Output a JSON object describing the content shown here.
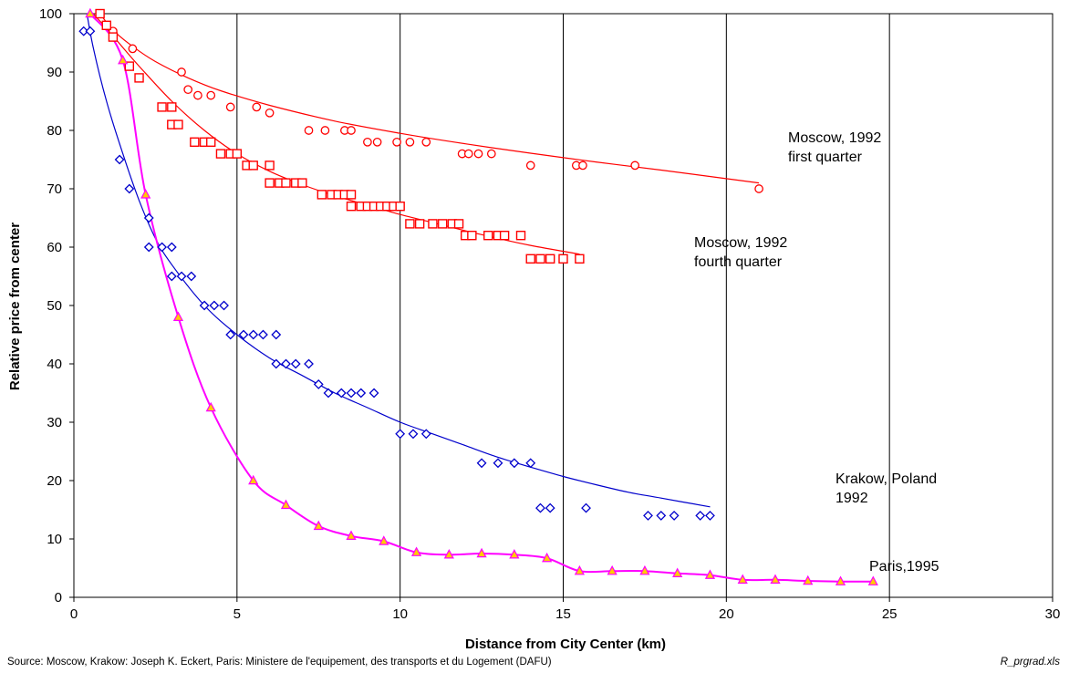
{
  "chart_data": {
    "type": "scatter",
    "xlabel": "Distance from City Center (km)",
    "ylabel": "Relative price from center",
    "xlim": [
      0,
      30
    ],
    "ylim": [
      0,
      100
    ],
    "x_ticks": [
      0,
      5,
      10,
      15,
      20,
      25,
      30
    ],
    "y_ticks": [
      0,
      10,
      20,
      30,
      40,
      50,
      60,
      70,
      80,
      90,
      100
    ],
    "grid": "vertical",
    "legend": "none",
    "series": [
      {
        "name": "Moscow, 1992 first quarter",
        "label_lines": [
          "Moscow, 1992",
          "first quarter"
        ],
        "color": "#ff0000",
        "marker": "circle",
        "points": [
          [
            0.8,
            100
          ],
          [
            1.0,
            98
          ],
          [
            1.2,
            97
          ],
          [
            1.8,
            94
          ],
          [
            3.3,
            90
          ],
          [
            3.5,
            87
          ],
          [
            3.8,
            86
          ],
          [
            4.2,
            86
          ],
          [
            4.8,
            84
          ],
          [
            5.6,
            84
          ],
          [
            6.0,
            83
          ],
          [
            7.2,
            80
          ],
          [
            7.7,
            80
          ],
          [
            8.3,
            80
          ],
          [
            8.5,
            80
          ],
          [
            9.0,
            78
          ],
          [
            9.3,
            78
          ],
          [
            9.9,
            78
          ],
          [
            10.3,
            78
          ],
          [
            10.8,
            78
          ],
          [
            11.9,
            76
          ],
          [
            12.1,
            76
          ],
          [
            12.4,
            76
          ],
          [
            12.8,
            76
          ],
          [
            14.0,
            74
          ],
          [
            15.4,
            74
          ],
          [
            15.6,
            74
          ],
          [
            17.2,
            74
          ],
          [
            21.0,
            70
          ]
        ],
        "trend": [
          [
            0.8,
            100
          ],
          [
            1.2,
            97.2
          ],
          [
            1.8,
            94.4
          ],
          [
            2.5,
            91.8
          ],
          [
            3.5,
            89.0
          ],
          [
            4.5,
            86.8
          ],
          [
            6,
            84.3
          ],
          [
            8,
            81.6
          ],
          [
            10,
            79.5
          ],
          [
            12,
            77.7
          ],
          [
            14,
            76.1
          ],
          [
            16,
            74.6
          ],
          [
            18,
            73.2
          ],
          [
            21,
            71.0
          ]
        ]
      },
      {
        "name": "Moscow, 1992 fourth quarter",
        "label_lines": [
          "Moscow, 1992",
          "fourth quarter"
        ],
        "color": "#ff0000",
        "marker": "square",
        "points": [
          [
            0.8,
            100
          ],
          [
            1.0,
            98
          ],
          [
            1.2,
            96
          ],
          [
            1.7,
            91
          ],
          [
            2.0,
            89
          ],
          [
            2.7,
            84
          ],
          [
            3.0,
            84
          ],
          [
            3.0,
            81
          ],
          [
            3.2,
            81
          ],
          [
            3.7,
            78
          ],
          [
            4.0,
            78
          ],
          [
            4.2,
            78
          ],
          [
            4.5,
            76
          ],
          [
            4.8,
            76
          ],
          [
            5.0,
            76
          ],
          [
            5.3,
            74
          ],
          [
            5.5,
            74
          ],
          [
            6.0,
            74
          ],
          [
            6.0,
            71
          ],
          [
            6.3,
            71
          ],
          [
            6.5,
            71
          ],
          [
            6.8,
            71
          ],
          [
            7.0,
            71
          ],
          [
            7.6,
            69
          ],
          [
            7.9,
            69
          ],
          [
            8.1,
            69
          ],
          [
            8.3,
            69
          ],
          [
            8.5,
            69
          ],
          [
            8.5,
            67
          ],
          [
            8.8,
            67
          ],
          [
            9.0,
            67
          ],
          [
            9.2,
            67
          ],
          [
            9.4,
            67
          ],
          [
            9.6,
            67
          ],
          [
            9.8,
            67
          ],
          [
            10.0,
            67
          ],
          [
            10.3,
            64
          ],
          [
            10.6,
            64
          ],
          [
            11.0,
            64
          ],
          [
            11.3,
            64
          ],
          [
            11.6,
            64
          ],
          [
            11.8,
            64
          ],
          [
            12.0,
            62
          ],
          [
            12.2,
            62
          ],
          [
            12.7,
            62
          ],
          [
            13.0,
            62
          ],
          [
            13.2,
            62
          ],
          [
            13.7,
            62
          ],
          [
            14.0,
            58
          ],
          [
            14.3,
            58
          ],
          [
            14.6,
            58
          ],
          [
            15.0,
            58
          ],
          [
            15.5,
            58
          ]
        ],
        "trend": [
          [
            0.5,
            100.5
          ],
          [
            1,
            97.5
          ],
          [
            1.5,
            94.2
          ],
          [
            2,
            91.0
          ],
          [
            3,
            85.0
          ],
          [
            4,
            80.0
          ],
          [
            5,
            76.0
          ],
          [
            6,
            73.0
          ],
          [
            7,
            70.7
          ],
          [
            8,
            68.8
          ],
          [
            9,
            67.2
          ],
          [
            10,
            65.6
          ],
          [
            11,
            64.2
          ],
          [
            12,
            62.8
          ],
          [
            13,
            61.5
          ],
          [
            14,
            60.3
          ],
          [
            15.5,
            58.8
          ]
        ]
      },
      {
        "name": "Krakow, Poland 1992",
        "label_lines": [
          "Krakow, Poland",
          "1992"
        ],
        "color": "#0000cc",
        "marker": "diamond",
        "points": [
          [
            0.3,
            97
          ],
          [
            0.5,
            97
          ],
          [
            1.4,
            75
          ],
          [
            1.7,
            70
          ],
          [
            2.3,
            65
          ],
          [
            2.3,
            60
          ],
          [
            2.7,
            60
          ],
          [
            3.0,
            60
          ],
          [
            3.0,
            55
          ],
          [
            3.3,
            55
          ],
          [
            3.6,
            55
          ],
          [
            4.0,
            50
          ],
          [
            4.3,
            50
          ],
          [
            4.6,
            50
          ],
          [
            4.8,
            45
          ],
          [
            5.2,
            45
          ],
          [
            5.5,
            45
          ],
          [
            5.8,
            45
          ],
          [
            6.2,
            45
          ],
          [
            6.2,
            40
          ],
          [
            6.5,
            40
          ],
          [
            6.8,
            40
          ],
          [
            7.2,
            40
          ],
          [
            7.5,
            36.5
          ],
          [
            7.8,
            35
          ],
          [
            8.2,
            35
          ],
          [
            8.5,
            35
          ],
          [
            8.8,
            35
          ],
          [
            9.2,
            35
          ],
          [
            10.0,
            28
          ],
          [
            10.4,
            28
          ],
          [
            10.8,
            28
          ],
          [
            12.5,
            23
          ],
          [
            13.0,
            23
          ],
          [
            13.5,
            23
          ],
          [
            14.0,
            23
          ],
          [
            14.3,
            15.3
          ],
          [
            14.6,
            15.3
          ],
          [
            15.7,
            15.3
          ],
          [
            17.6,
            14
          ],
          [
            18.0,
            14
          ],
          [
            18.4,
            14
          ],
          [
            19.2,
            14
          ],
          [
            19.5,
            14
          ]
        ],
        "trend": [
          [
            0.4,
            100
          ],
          [
            0.6,
            94
          ],
          [
            1,
            85
          ],
          [
            1.5,
            76
          ],
          [
            2,
            68
          ],
          [
            2.5,
            61.5
          ],
          [
            3,
            57
          ],
          [
            4,
            50
          ],
          [
            5,
            45
          ],
          [
            6,
            41
          ],
          [
            7,
            38
          ],
          [
            8,
            35
          ],
          [
            9,
            32.5
          ],
          [
            10,
            30
          ],
          [
            11,
            28
          ],
          [
            12,
            26
          ],
          [
            13,
            24
          ],
          [
            14,
            22.3
          ],
          [
            15,
            20.7
          ],
          [
            16,
            19.3
          ],
          [
            17,
            18
          ],
          [
            18,
            17
          ],
          [
            19.5,
            15.5
          ]
        ]
      },
      {
        "name": "Paris,1995",
        "label_lines": [
          "Paris,1995"
        ],
        "color": "#ff00ff",
        "marker": "triangle",
        "marker_fill": "#ffcc00",
        "points": [
          [
            0.5,
            100
          ],
          [
            1.5,
            92
          ],
          [
            2.2,
            69
          ],
          [
            3.2,
            48
          ],
          [
            4.2,
            32.5
          ],
          [
            5.5,
            20
          ],
          [
            6.5,
            15.8
          ],
          [
            7.5,
            12.2
          ],
          [
            8.5,
            10.5
          ],
          [
            9.5,
            9.6
          ],
          [
            10.5,
            7.7
          ],
          [
            11.5,
            7.3
          ],
          [
            12.5,
            7.5
          ],
          [
            13.5,
            7.3
          ],
          [
            14.5,
            6.7
          ],
          [
            15.5,
            4.5
          ],
          [
            16.5,
            4.5
          ],
          [
            17.5,
            4.5
          ],
          [
            18.5,
            4.1
          ],
          [
            19.5,
            3.8
          ],
          [
            20.5,
            3.0
          ],
          [
            21.5,
            3.0
          ],
          [
            22.5,
            2.8
          ],
          [
            23.5,
            2.7
          ],
          [
            24.5,
            2.7
          ]
        ]
      }
    ]
  },
  "footer": {
    "source": "Source: Moscow, Krakow: Joseph K. Eckert,  Paris: Ministere de l'equipement, des transports et du Logement (DAFU)",
    "file": "R_prgrad.xls"
  }
}
